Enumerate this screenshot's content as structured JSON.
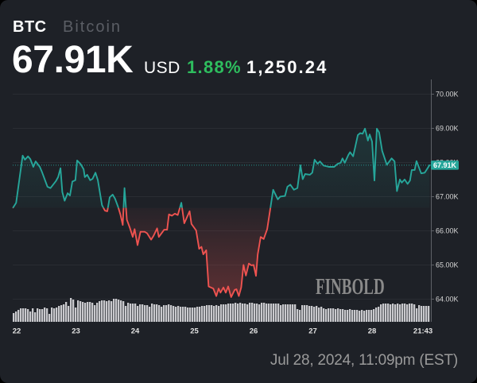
{
  "header": {
    "ticker": "BTC",
    "name": "Bitcoin",
    "price": "67.91K",
    "currency": "USD",
    "change_pct": "1.88%",
    "change_abs": "1,250.24"
  },
  "watermark": {
    "text": "FINBOLD"
  },
  "footer": {
    "timestamp": "Jul 28, 2024, 11:09pm (EST)"
  },
  "colors": {
    "background": "#1e2127",
    "up": "#26a69a",
    "down": "#ef5350",
    "change_positive": "#2ebd5e",
    "volume": "#c9c9cd",
    "grid": "#2a2d33",
    "axis": "#5e6167",
    "tick_text": "#d6d6d6"
  },
  "chart_data": {
    "type": "line",
    "title": "BTC Bitcoin",
    "xlabel": "",
    "ylabel": "",
    "ylim": [
      63.45,
      70.42
    ],
    "grid": true,
    "legend": "none",
    "baseline": 66.66,
    "last_price": 67.91,
    "last_price_label": "67.91K",
    "y_ticks": [
      {
        "value": 70,
        "label": "70.00K"
      },
      {
        "value": 69,
        "label": "69.00K"
      },
      {
        "value": 68,
        "label": "68.00K"
      },
      {
        "value": 67,
        "label": "67.00K"
      },
      {
        "value": 66,
        "label": "66.00K"
      },
      {
        "value": 65,
        "label": "65.00K"
      },
      {
        "value": 64,
        "label": "64.00K"
      }
    ],
    "x_ticks": [
      {
        "day": 22,
        "label": "22"
      },
      {
        "day": 23,
        "label": "23"
      },
      {
        "day": 24,
        "label": "24"
      },
      {
        "day": 25,
        "label": "25"
      },
      {
        "day": 26,
        "label": "26"
      },
      {
        "day": 27,
        "label": "27"
      },
      {
        "day": 28,
        "label": "28"
      },
      {
        "day": 28.86,
        "label": "21:43"
      }
    ],
    "series": [
      {
        "name": "BTC price (K USD)",
        "x": [
          21.94,
          21.99,
          22.1,
          22.14,
          22.19,
          22.23,
          22.28,
          22.32,
          22.39,
          22.43,
          22.52,
          22.57,
          22.66,
          22.7,
          22.74,
          22.77,
          22.81,
          22.86,
          22.9,
          22.94,
          22.99,
          23.02,
          23.08,
          23.13,
          23.15,
          23.19,
          23.24,
          23.28,
          23.33,
          23.37,
          23.44,
          23.49,
          23.53,
          23.57,
          23.62,
          23.66,
          23.71,
          23.75,
          23.79,
          23.82,
          23.86,
          23.91,
          23.96,
          23.99,
          24.04,
          24.09,
          24.16,
          24.2,
          24.27,
          24.31,
          24.37,
          24.4,
          24.49,
          24.54,
          24.57,
          24.62,
          24.67,
          24.72,
          24.78,
          24.83,
          24.92,
          24.95,
          25.03,
          25.08,
          25.12,
          25.15,
          25.2,
          25.24,
          25.32,
          25.37,
          25.41,
          25.44,
          25.49,
          25.53,
          25.57,
          25.62,
          25.68,
          25.71,
          25.75,
          25.79,
          25.83,
          25.87,
          25.92,
          25.96,
          26.0,
          26.04,
          26.07,
          26.12,
          26.17,
          26.23,
          26.28,
          26.33,
          26.41,
          26.45,
          26.53,
          26.57,
          26.62,
          26.68,
          26.74,
          26.79,
          26.83,
          26.87,
          26.95,
          26.99,
          27.03,
          27.08,
          27.12,
          27.18,
          27.27,
          27.36,
          27.42,
          27.47,
          27.5,
          27.54,
          27.6,
          27.63,
          27.68,
          27.71,
          27.76,
          27.8,
          27.84,
          27.88,
          27.93,
          27.96,
          28.0,
          28.04,
          28.08,
          28.12,
          28.17,
          28.25,
          28.33,
          28.38,
          28.42,
          28.47,
          28.5,
          28.55,
          28.6,
          28.64,
          28.67,
          28.72,
          28.75,
          28.83,
          28.89,
          28.97
        ],
        "values": [
          66.67,
          66.81,
          68.19,
          68.07,
          68.17,
          68.09,
          67.86,
          68.02,
          67.86,
          67.7,
          67.28,
          67.24,
          67.44,
          67.56,
          67.82,
          67.12,
          66.87,
          67.09,
          67.02,
          67.43,
          67.47,
          68.05,
          67.94,
          67.79,
          67.56,
          67.63,
          67.47,
          67.51,
          67.69,
          67.47,
          66.74,
          66.58,
          66.56,
          66.97,
          67.05,
          66.93,
          66.7,
          66.47,
          66.16,
          67.24,
          66.31,
          66.08,
          65.81,
          66.04,
          65.57,
          65.96,
          65.96,
          65.92,
          65.73,
          65.84,
          66.06,
          65.81,
          66.02,
          66.02,
          66.47,
          66.43,
          66.49,
          66.45,
          66.81,
          66.21,
          66.56,
          66.19,
          66.0,
          65.46,
          65.52,
          65.3,
          65.42,
          64.36,
          64.3,
          64.08,
          64.3,
          64.18,
          64.33,
          64.18,
          64.36,
          64.05,
          64.26,
          64.28,
          64.08,
          64.33,
          64.99,
          64.68,
          65.03,
          64.98,
          64.99,
          64.67,
          65.3,
          65.81,
          65.75,
          66.04,
          66.62,
          67.19,
          66.91,
          66.99,
          67.01,
          67.28,
          67.34,
          67.19,
          67.24,
          67.91,
          67.5,
          67.65,
          67.63,
          67.69,
          68.07,
          67.95,
          68.02,
          67.9,
          67.86,
          67.86,
          67.95,
          67.98,
          68.11,
          67.98,
          68.21,
          68.29,
          68.17,
          68.4,
          68.79,
          68.85,
          68.83,
          68.98,
          68.63,
          68.81,
          68.6,
          67.46,
          68.98,
          68.87,
          68.33,
          67.92,
          68.11,
          68.02,
          67.15,
          67.49,
          67.4,
          67.49,
          67.36,
          67.46,
          67.77,
          67.77,
          68.03,
          67.67,
          67.69,
          67.91
        ]
      },
      {
        "name": "Volume (relative)",
        "type": "bar",
        "values": [
          11,
          13,
          15,
          17,
          17,
          17,
          16,
          13,
          17,
          12,
          17,
          16,
          16,
          18,
          17,
          10,
          18,
          17,
          18,
          20,
          21,
          22,
          25,
          20,
          30,
          28,
          18,
          27,
          26,
          25,
          24,
          25,
          25,
          24,
          21,
          24,
          26,
          27,
          27,
          26,
          27,
          26,
          29,
          29,
          28,
          27,
          26,
          20,
          24,
          23,
          23,
          23,
          20,
          22,
          22,
          21,
          21,
          19,
          23,
          22,
          22,
          21,
          19,
          21,
          21,
          22,
          21,
          20,
          19,
          20,
          19,
          19,
          19,
          18,
          18,
          18,
          18,
          19,
          19,
          20,
          20,
          21,
          21,
          21,
          20,
          21,
          20,
          22,
          22,
          22,
          23,
          23,
          23,
          24,
          23,
          24,
          23,
          23,
          22,
          24,
          24,
          23,
          23,
          22,
          24,
          24,
          23,
          23,
          23,
          23,
          23,
          23,
          21,
          22,
          22,
          22,
          22,
          22,
          22,
          16,
          15,
          21,
          21,
          21,
          20,
          20,
          19,
          20,
          18,
          19,
          17,
          16,
          17,
          17,
          17,
          16,
          17,
          16,
          16,
          15,
          15,
          16,
          15,
          15,
          15,
          14,
          15,
          14,
          15,
          15,
          15,
          16,
          18,
          19,
          22,
          23,
          23,
          23,
          22,
          23,
          22,
          23,
          22,
          23,
          23,
          22,
          23,
          23,
          22,
          17,
          21,
          20,
          20,
          20,
          20
        ]
      }
    ]
  }
}
